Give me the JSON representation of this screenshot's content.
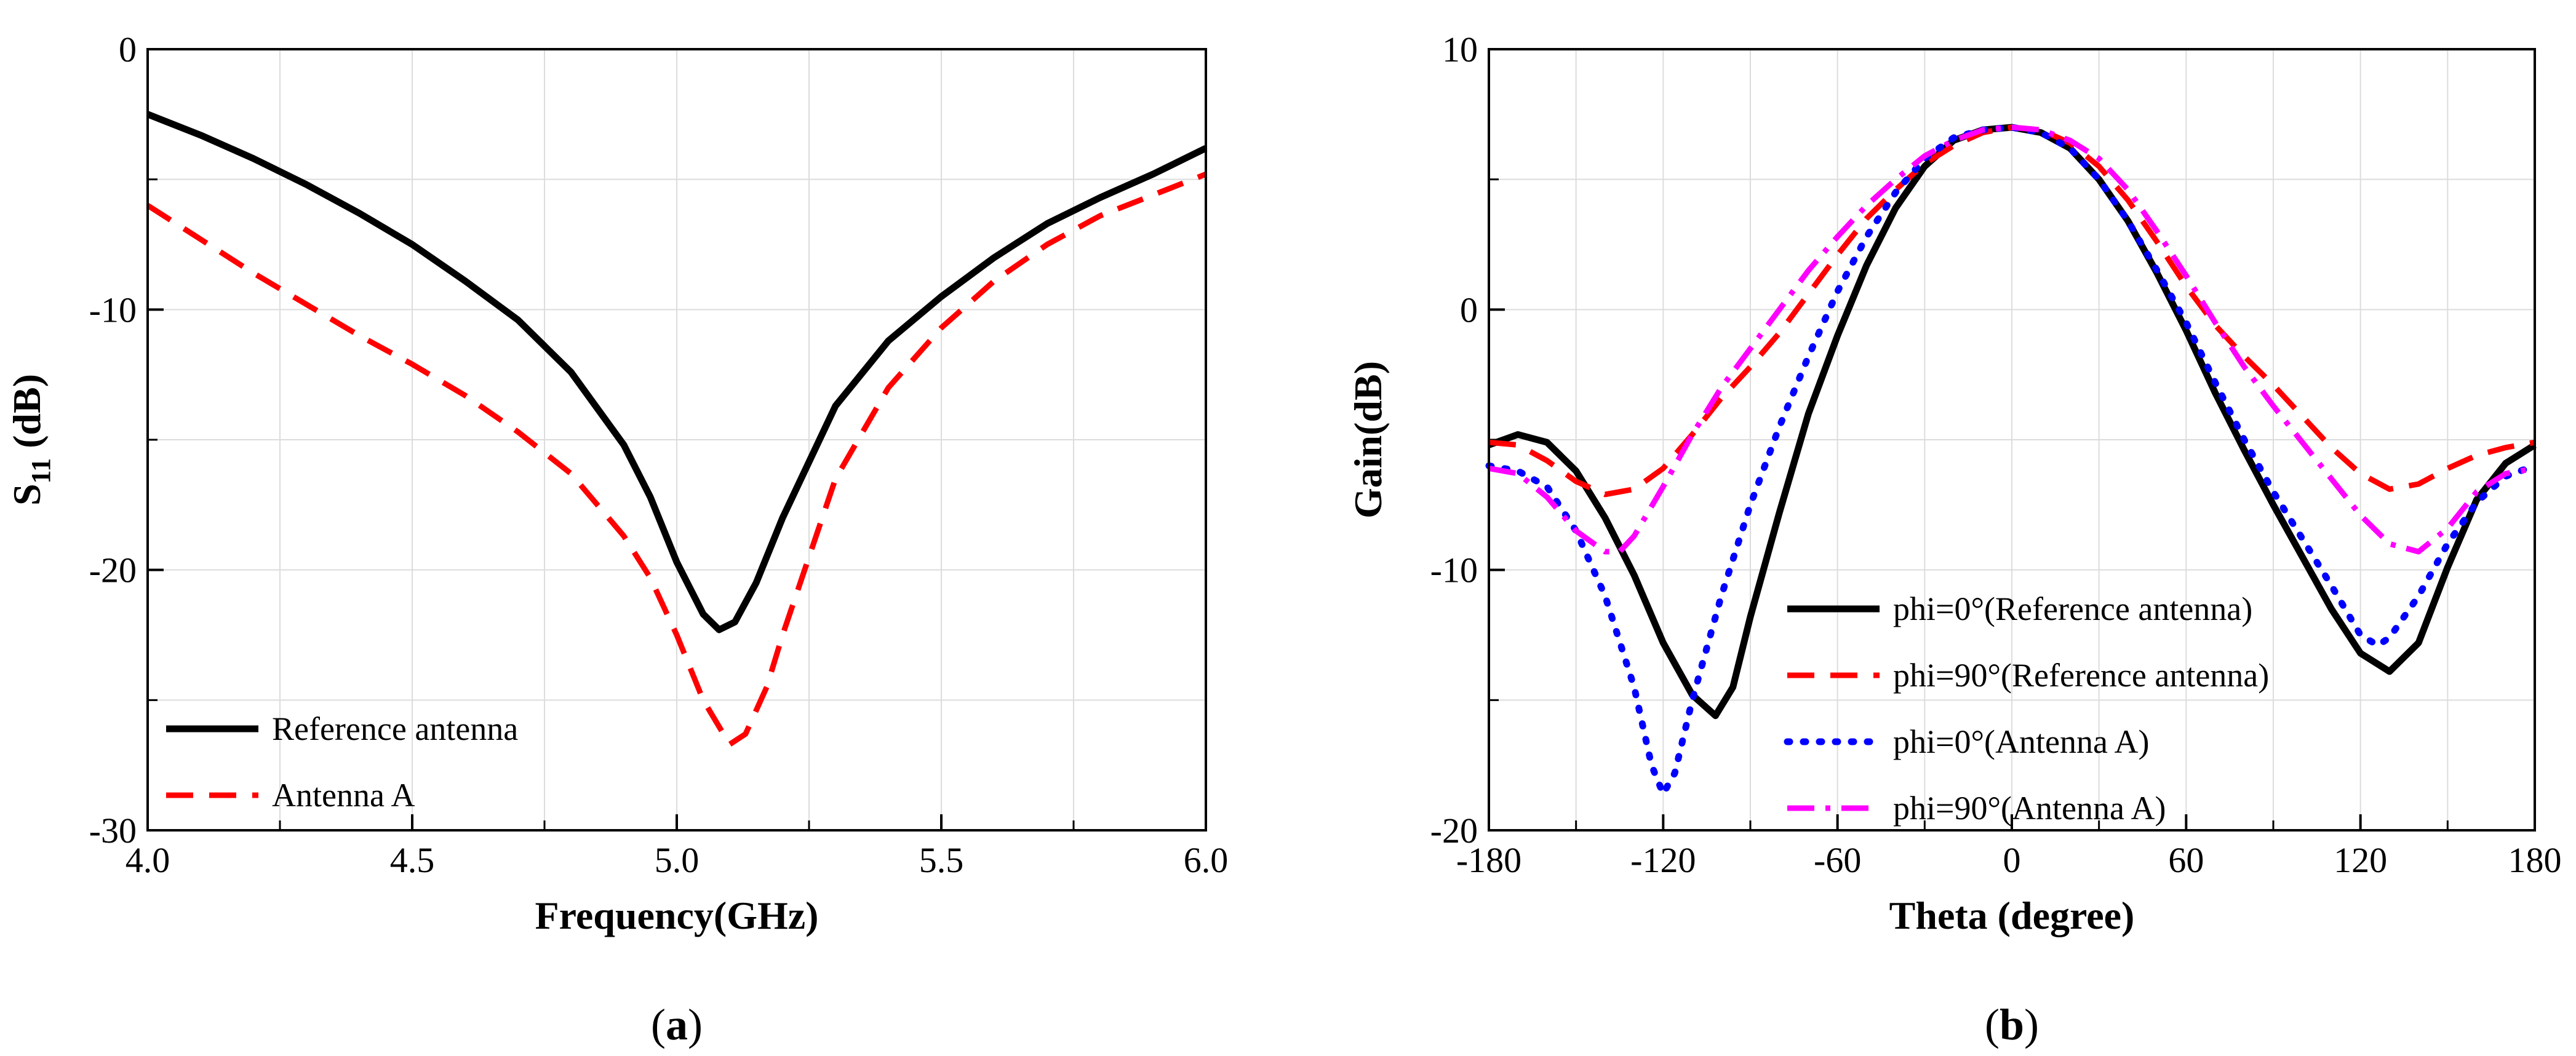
{
  "chart_data": [
    {
      "type": "line",
      "panel": "a",
      "caption": "(a)",
      "caption_open": "(",
      "caption_letter": "a",
      "caption_close": ")",
      "xlabel": "Frequency(GHz)",
      "ylabel_main": "S",
      "ylabel_sub": "11",
      "ylabel_rest": " (dB)",
      "xlim": [
        4.0,
        6.0
      ],
      "ylim": [
        -30,
        0
      ],
      "xticks": [
        4.0,
        4.5,
        5.0,
        5.5,
        6.0
      ],
      "xtick_labels": [
        "4.0",
        "4.5",
        "5.0",
        "5.5",
        "6.0"
      ],
      "yticks": [
        -30,
        -20,
        -10,
        0
      ],
      "ytick_labels": [
        "-30",
        "-20",
        "-10",
        "0"
      ],
      "grid": true,
      "legend_position": "bottom-left",
      "series": [
        {
          "name": "Reference antenna",
          "color": "#000000",
          "style": "solid",
          "points": [
            [
              4.0,
              -2.5
            ],
            [
              4.1,
              -3.3
            ],
            [
              4.2,
              -4.2
            ],
            [
              4.3,
              -5.2
            ],
            [
              4.4,
              -6.3
            ],
            [
              4.5,
              -7.5
            ],
            [
              4.6,
              -8.9
            ],
            [
              4.7,
              -10.4
            ],
            [
              4.8,
              -12.4
            ],
            [
              4.9,
              -15.2
            ],
            [
              4.95,
              -17.2
            ],
            [
              5.0,
              -19.7
            ],
            [
              5.05,
              -21.7
            ],
            [
              5.08,
              -22.3
            ],
            [
              5.11,
              -22.0
            ],
            [
              5.15,
              -20.5
            ],
            [
              5.2,
              -18.0
            ],
            [
              5.3,
              -13.7
            ],
            [
              5.4,
              -11.2
            ],
            [
              5.5,
              -9.5
            ],
            [
              5.6,
              -8.0
            ],
            [
              5.7,
              -6.7
            ],
            [
              5.8,
              -5.7
            ],
            [
              5.9,
              -4.8
            ],
            [
              6.0,
              -3.8
            ]
          ]
        },
        {
          "name": "Antenna A",
          "color": "#ff0000",
          "style": "dashed",
          "points": [
            [
              4.0,
              -6.0
            ],
            [
              4.1,
              -7.3
            ],
            [
              4.2,
              -8.6
            ],
            [
              4.3,
              -9.8
            ],
            [
              4.4,
              -11.0
            ],
            [
              4.5,
              -12.1
            ],
            [
              4.6,
              -13.3
            ],
            [
              4.7,
              -14.7
            ],
            [
              4.8,
              -16.3
            ],
            [
              4.9,
              -18.7
            ],
            [
              4.95,
              -20.3
            ],
            [
              5.0,
              -22.5
            ],
            [
              5.05,
              -25.0
            ],
            [
              5.1,
              -26.7
            ],
            [
              5.13,
              -26.3
            ],
            [
              5.17,
              -24.5
            ],
            [
              5.2,
              -22.5
            ],
            [
              5.3,
              -16.5
            ],
            [
              5.4,
              -13.0
            ],
            [
              5.5,
              -10.7
            ],
            [
              5.6,
              -8.9
            ],
            [
              5.7,
              -7.5
            ],
            [
              5.8,
              -6.4
            ],
            [
              5.9,
              -5.6
            ],
            [
              6.0,
              -4.8
            ]
          ]
        }
      ]
    },
    {
      "type": "line",
      "panel": "b",
      "caption": "(b)",
      "caption_open": "(",
      "caption_letter": "b",
      "caption_close": ")",
      "xlabel": "Theta (degree)",
      "ylabel": "Gain(dB)",
      "xlim": [
        -180,
        180
      ],
      "ylim": [
        -20,
        10
      ],
      "xticks": [
        -180,
        -120,
        -60,
        0,
        60,
        120,
        180
      ],
      "xtick_labels": [
        "-180",
        "-120",
        "-60",
        "0",
        "60",
        "120",
        "180"
      ],
      "yticks": [
        -20,
        -10,
        0,
        10
      ],
      "ytick_labels": [
        "-20",
        "-10",
        "0",
        "10"
      ],
      "grid": true,
      "legend_position": "bottom-center",
      "series": [
        {
          "name": "phi=0°(Reference antenna)",
          "color": "#000000",
          "style": "solid",
          "points": [
            [
              -180,
              -5.2
            ],
            [
              -170,
              -4.8
            ],
            [
              -160,
              -5.1
            ],
            [
              -150,
              -6.2
            ],
            [
              -140,
              -8.0
            ],
            [
              -130,
              -10.2
            ],
            [
              -120,
              -12.8
            ],
            [
              -110,
              -14.8
            ],
            [
              -102,
              -15.6
            ],
            [
              -96,
              -14.5
            ],
            [
              -90,
              -11.8
            ],
            [
              -80,
              -7.8
            ],
            [
              -70,
              -4.0
            ],
            [
              -60,
              -1.0
            ],
            [
              -50,
              1.7
            ],
            [
              -40,
              3.9
            ],
            [
              -30,
              5.5
            ],
            [
              -20,
              6.5
            ],
            [
              -10,
              6.9
            ],
            [
              0,
              7.0
            ],
            [
              10,
              6.8
            ],
            [
              20,
              6.2
            ],
            [
              30,
              5.0
            ],
            [
              40,
              3.4
            ],
            [
              50,
              1.4
            ],
            [
              60,
              -0.8
            ],
            [
              70,
              -3.2
            ],
            [
              80,
              -5.4
            ],
            [
              90,
              -7.5
            ],
            [
              100,
              -9.5
            ],
            [
              110,
              -11.5
            ],
            [
              120,
              -13.2
            ],
            [
              130,
              -13.9
            ],
            [
              140,
              -12.8
            ],
            [
              150,
              -9.9
            ],
            [
              160,
              -7.3
            ],
            [
              170,
              -5.9
            ],
            [
              180,
              -5.2
            ]
          ]
        },
        {
          "name": "phi=90°(Reference antenna)",
          "color": "#ff0000",
          "style": "dashed",
          "points": [
            [
              -180,
              -5.1
            ],
            [
              -170,
              -5.2
            ],
            [
              -160,
              -5.8
            ],
            [
              -150,
              -6.6
            ],
            [
              -140,
              -7.1
            ],
            [
              -130,
              -6.9
            ],
            [
              -120,
              -6.1
            ],
            [
              -110,
              -4.8
            ],
            [
              -100,
              -3.4
            ],
            [
              -90,
              -2.2
            ],
            [
              -80,
              -0.9
            ],
            [
              -70,
              0.6
            ],
            [
              -60,
              2.1
            ],
            [
              -50,
              3.5
            ],
            [
              -40,
              4.6
            ],
            [
              -30,
              5.6
            ],
            [
              -20,
              6.3
            ],
            [
              -10,
              6.8
            ],
            [
              0,
              7.0
            ],
            [
              10,
              6.9
            ],
            [
              20,
              6.4
            ],
            [
              30,
              5.5
            ],
            [
              40,
              4.2
            ],
            [
              50,
              2.6
            ],
            [
              60,
              0.9
            ],
            [
              70,
              -0.6
            ],
            [
              80,
              -1.8
            ],
            [
              90,
              -2.9
            ],
            [
              100,
              -4.1
            ],
            [
              110,
              -5.3
            ],
            [
              120,
              -6.3
            ],
            [
              130,
              -6.9
            ],
            [
              140,
              -6.7
            ],
            [
              150,
              -6.1
            ],
            [
              160,
              -5.6
            ],
            [
              170,
              -5.3
            ],
            [
              180,
              -5.1
            ]
          ]
        },
        {
          "name": "phi=0°(Antenna A)",
          "color": "#0000ff",
          "style": "dotted",
          "points": [
            [
              -180,
              -6.0
            ],
            [
              -170,
              -6.2
            ],
            [
              -160,
              -6.8
            ],
            [
              -150,
              -8.5
            ],
            [
              -140,
              -11.0
            ],
            [
              -130,
              -14.5
            ],
            [
              -124,
              -17.5
            ],
            [
              -120,
              -18.6
            ],
            [
              -116,
              -17.8
            ],
            [
              -110,
              -15.0
            ],
            [
              -100,
              -11.0
            ],
            [
              -90,
              -7.5
            ],
            [
              -80,
              -4.5
            ],
            [
              -70,
              -1.8
            ],
            [
              -60,
              0.7
            ],
            [
              -50,
              2.8
            ],
            [
              -40,
              4.5
            ],
            [
              -30,
              5.8
            ],
            [
              -20,
              6.6
            ],
            [
              -10,
              6.9
            ],
            [
              0,
              7.0
            ],
            [
              10,
              6.8
            ],
            [
              20,
              6.2
            ],
            [
              30,
              5.0
            ],
            [
              40,
              3.4
            ],
            [
              50,
              1.5
            ],
            [
              60,
              -0.5
            ],
            [
              70,
              -2.8
            ],
            [
              80,
              -5.0
            ],
            [
              90,
              -7.0
            ],
            [
              100,
              -8.8
            ],
            [
              110,
              -10.6
            ],
            [
              120,
              -12.5
            ],
            [
              126,
              -12.9
            ],
            [
              130,
              -12.6
            ],
            [
              140,
              -11.0
            ],
            [
              150,
              -9.0
            ],
            [
              160,
              -7.4
            ],
            [
              170,
              -6.4
            ],
            [
              180,
              -6.0
            ]
          ]
        },
        {
          "name": "phi=90°(Antenna A)",
          "color": "#ff00ff",
          "style": "dashdot",
          "points": [
            [
              -180,
              -6.1
            ],
            [
              -170,
              -6.3
            ],
            [
              -160,
              -7.2
            ],
            [
              -150,
              -8.5
            ],
            [
              -140,
              -9.3
            ],
            [
              -135,
              -9.3
            ],
            [
              -130,
              -8.7
            ],
            [
              -120,
              -6.8
            ],
            [
              -110,
              -4.8
            ],
            [
              -100,
              -3.0
            ],
            [
              -90,
              -1.5
            ],
            [
              -80,
              0.0
            ],
            [
              -70,
              1.5
            ],
            [
              -60,
              2.8
            ],
            [
              -50,
              4.0
            ],
            [
              -40,
              5.0
            ],
            [
              -30,
              5.9
            ],
            [
              -20,
              6.5
            ],
            [
              -10,
              6.9
            ],
            [
              0,
              7.0
            ],
            [
              10,
              6.9
            ],
            [
              20,
              6.5
            ],
            [
              30,
              5.8
            ],
            [
              40,
              4.6
            ],
            [
              50,
              3.0
            ],
            [
              60,
              1.3
            ],
            [
              70,
              -0.5
            ],
            [
              80,
              -2.2
            ],
            [
              90,
              -3.7
            ],
            [
              100,
              -5.1
            ],
            [
              110,
              -6.5
            ],
            [
              120,
              -7.9
            ],
            [
              130,
              -9.0
            ],
            [
              140,
              -9.3
            ],
            [
              150,
              -8.4
            ],
            [
              160,
              -7.0
            ],
            [
              170,
              -6.3
            ],
            [
              180,
              -6.1
            ]
          ]
        }
      ]
    }
  ]
}
